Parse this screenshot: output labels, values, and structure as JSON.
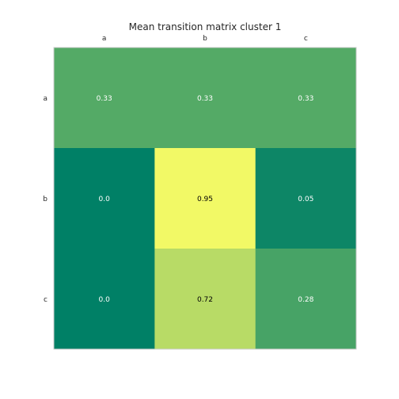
{
  "chart_data": {
    "type": "heatmap",
    "title": "Mean transition matrix cluster 1",
    "xlabel": "",
    "ylabel": "",
    "x_categories": [
      "a",
      "b",
      "c"
    ],
    "y_categories": [
      "a",
      "b",
      "c"
    ],
    "values": [
      [
        0.33,
        0.33,
        0.33
      ],
      [
        0.0,
        0.95,
        0.05
      ],
      [
        0.0,
        0.72,
        0.28
      ]
    ],
    "cell_labels": [
      [
        "0.33",
        "0.33",
        "0.33"
      ],
      [
        "0.0",
        "0.95",
        "0.05"
      ],
      [
        "0.0",
        "0.72",
        "0.28"
      ]
    ],
    "colormap": "summer",
    "colorscale_range": [
      0,
      1
    ],
    "x_ticks_position": "top",
    "grid": false,
    "legend": "none",
    "colors": {
      "frame": "#cccccc",
      "text_dark": "#000000",
      "text_light": "#ffffff",
      "title": "#262626"
    }
  }
}
